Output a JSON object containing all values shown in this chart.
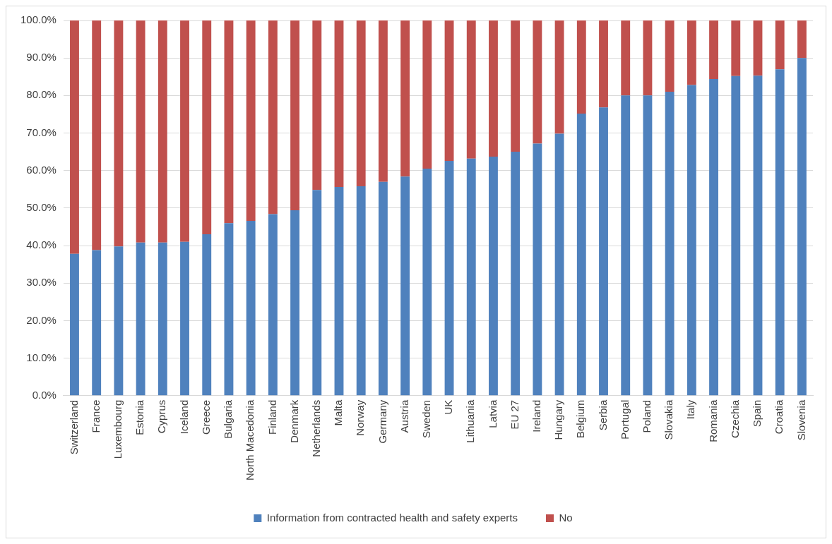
{
  "chart_data": {
    "type": "bar",
    "stacked": true,
    "categories": [
      "Switzerland",
      "France",
      "Luxembourg",
      "Estonia",
      "Cyprus",
      "Iceland",
      "Greece",
      "Bulgaria",
      "North Macedonia",
      "Finland",
      "Denmark",
      "Netherlands",
      "Malta",
      "Norway",
      "Germany",
      "Austria",
      "Sweden",
      "UK",
      "Lithuania",
      "Latvia",
      "EU 27",
      "Ireland",
      "Hungary",
      "Belgium",
      "Serbia",
      "Portugal",
      "Poland",
      "Slovakia",
      "Italy",
      "Romania",
      "Czechia",
      "Spain",
      "Croatia",
      "Slovenia"
    ],
    "series": [
      {
        "name": "Information from contracted health and safety experts",
        "color": "#4f81bd",
        "values": [
          37.8,
          38.8,
          39.8,
          40.8,
          40.8,
          41.0,
          43.0,
          46.0,
          46.6,
          48.4,
          49.4,
          54.8,
          55.6,
          55.8,
          57.0,
          58.4,
          60.5,
          62.6,
          63.2,
          63.7,
          65.0,
          67.2,
          69.8,
          75.2,
          76.8,
          80.0,
          80.0,
          81.0,
          82.8,
          84.4,
          85.2,
          85.3,
          87.0,
          90.0
        ]
      },
      {
        "name": "No",
        "color": "#c0504d",
        "values": [
          62.2,
          61.2,
          60.2,
          59.2,
          59.2,
          59.0,
          57.0,
          54.0,
          53.4,
          51.6,
          50.6,
          45.2,
          44.4,
          44.2,
          43.0,
          41.6,
          39.5,
          37.4,
          36.8,
          36.3,
          35.0,
          32.8,
          30.2,
          24.8,
          23.2,
          20.0,
          20.0,
          19.0,
          17.2,
          15.6,
          14.8,
          14.7,
          13.0,
          10.0
        ]
      }
    ],
    "ylim": [
      0,
      100
    ],
    "yticks": [
      {
        "value": 0,
        "label": "0.0%"
      },
      {
        "value": 10,
        "label": "10.0%"
      },
      {
        "value": 20,
        "label": "20.0%"
      },
      {
        "value": 30,
        "label": "30.0%"
      },
      {
        "value": 40,
        "label": "40.0%"
      },
      {
        "value": 50,
        "label": "50.0%"
      },
      {
        "value": 60,
        "label": "60.0%"
      },
      {
        "value": 70,
        "label": "70.0%"
      },
      {
        "value": 80,
        "label": "80.0%"
      },
      {
        "value": 90,
        "label": "90.0%"
      },
      {
        "value": 100,
        "label": "100.0%"
      }
    ],
    "grid": "y",
    "legend": "bottom"
  }
}
